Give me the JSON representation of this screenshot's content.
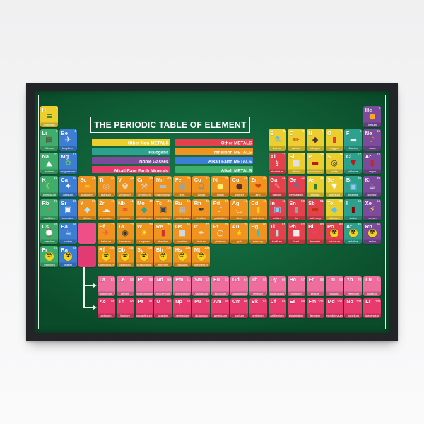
{
  "page": {
    "background_top": "#f0f0f1",
    "background_bottom": "#fafafb"
  },
  "poster": {
    "title": "THE PERIODIC TABLE OF ELEMENT",
    "frame_color": "#232428",
    "background_center": "#1a7a48",
    "background_edge": "#0a4b29",
    "pinstripe_color": "#ffffff",
    "radioactive_icon_color": "#f7d21b",
    "legend": {
      "left": [
        {
          "label": "Other Non-METALS",
          "color": "#ecce2e"
        },
        {
          "label": "Halogens",
          "color": "#2da18d"
        },
        {
          "label": "Noble Gasses",
          "color": "#7c4b9c"
        },
        {
          "label": "Alkali Rare Earth Minerals",
          "color": "#e73b6e"
        }
      ],
      "right": [
        {
          "label": "Other METALS",
          "color": "#e4414d"
        },
        {
          "label": "Transition METALS",
          "color": "#f0941f"
        },
        {
          "label": "Alkali Earth METALS",
          "color": "#3b7ed3"
        },
        {
          "label": "Alkali METALS",
          "color": "#3fae6c"
        }
      ]
    },
    "category_colors": {
      "nm": "#ecce2e",
      "hal": "#2da18d",
      "nob": "#7c4b9c",
      "alk": "#3fae6c",
      "ae": "#3b7ed3",
      "tm": "#f0941f",
      "om": "#e4414d",
      "la": "#ee6d9c",
      "acs": "#e73b6e"
    },
    "element_fields": [
      "symbol",
      "number",
      "name",
      "category",
      "column",
      "period_row",
      "icon",
      "glyph",
      "glyph_color"
    ],
    "elements": [
      [
        "H",
        1,
        "hydrogen",
        "nm",
        1,
        1,
        "burger",
        "≡",
        "#2e7d32"
      ],
      [
        "He",
        2,
        "helium",
        "nob",
        18,
        1,
        "balloon",
        "●",
        "#f9a825"
      ],
      [
        "Li",
        3,
        "lithium",
        "alk",
        1,
        2,
        "chocolate",
        "▤",
        "#5d4037"
      ],
      [
        "Be",
        4,
        "beryllium",
        "ae",
        2,
        2,
        "satellite",
        "✈",
        "#eceff1"
      ],
      [
        "B",
        5,
        "boron",
        "nm",
        13,
        2,
        "measuring-jug",
        "⚗",
        "#64b5f6"
      ],
      [
        "C",
        6,
        "carbon",
        "nm",
        14,
        2,
        "pencil",
        "✏",
        "#c62828"
      ],
      [
        "N",
        7,
        "nitrogen",
        "nm",
        15,
        2,
        "pouch",
        "◆",
        "#4e342e"
      ],
      [
        "O",
        8,
        "oxygen",
        "nm",
        16,
        2,
        "oxygen-tank",
        "▮",
        "#e53935"
      ],
      [
        "F",
        9,
        "fluorine",
        "hal",
        17,
        2,
        "toothpaste",
        "▬",
        "#eceff1"
      ],
      [
        "Ne",
        10,
        "neon",
        "nob",
        18,
        2,
        "neon-tube",
        "♪",
        "#fb8c00"
      ],
      [
        "Na",
        11,
        "sodium",
        "alk",
        1,
        3,
        "salt-cone",
        "▲",
        "#fafafa"
      ],
      [
        "Mg",
        12,
        "magnesium",
        "ae",
        2,
        3,
        "leaves",
        "✿",
        "#66bb6a"
      ],
      [
        "Al",
        13,
        "aluminium",
        "om",
        13,
        3,
        "squeeze-tube",
        "§",
        "#eceff1"
      ],
      [
        "Si",
        14,
        "silicon",
        "nm",
        14,
        3,
        "chip",
        "■",
        "#e0e0e0"
      ],
      [
        "P",
        15,
        "phosphorus",
        "nm",
        15,
        3,
        "candy-bar",
        "▬",
        "#b71c1c"
      ],
      [
        "S",
        16,
        "sulfur",
        "nm",
        16,
        3,
        "tire",
        "◎",
        "#263238"
      ],
      [
        "Cl",
        17,
        "chlorine",
        "hal",
        17,
        3,
        "necktie",
        "▼",
        "#b71c1c"
      ],
      [
        "Ar",
        18,
        "argon",
        "nob",
        18,
        3,
        "canister",
        "▮",
        "#c62828"
      ],
      [
        "K",
        19,
        "potassium",
        "alk",
        1,
        4,
        "banana",
        "☾",
        "#fdd835"
      ],
      [
        "Ca",
        20,
        "calcium",
        "ae",
        2,
        4,
        "bone",
        "✦",
        "#fafafa"
      ],
      [
        "Sc",
        21,
        "scandium",
        "tm",
        3,
        4,
        "bicycle",
        "∞",
        "#fdd835"
      ],
      [
        "Ti",
        22,
        "titanium",
        "tm",
        4,
        4,
        "tennis-racket",
        "◎",
        "#d7ccc8"
      ],
      [
        "V",
        23,
        "vanadium",
        "tm",
        5,
        4,
        "gears",
        "⚙",
        "#eceff1"
      ],
      [
        "Cr",
        24,
        "chromium",
        "tm",
        6,
        4,
        "tools",
        "⚒",
        "#cfd8dc"
      ],
      [
        "Mn",
        25,
        "manganese",
        "tm",
        7,
        4,
        "girder",
        "▬",
        "#b0bec5"
      ],
      [
        "Fe",
        26,
        "iron",
        "tm",
        8,
        4,
        "fence",
        "▦",
        "#90a4ae"
      ],
      [
        "Co",
        27,
        "cobalt",
        "tm",
        9,
        4,
        "horseshoe",
        "Ω",
        "#78909c"
      ],
      [
        "Ni",
        28,
        "nickel",
        "tm",
        10,
        4,
        "coin",
        "●",
        "#fff176"
      ],
      [
        "Cu",
        29,
        "copper",
        "tm",
        11,
        4,
        "frying-pan",
        "●",
        "#4e342e"
      ],
      [
        "Zn",
        30,
        "zinc",
        "tm",
        12,
        4,
        "meat",
        "❤",
        "#d84315"
      ],
      [
        "Ga",
        31,
        "gallium",
        "om",
        13,
        4,
        "thermometer",
        "✎",
        "#ef9a9a"
      ],
      [
        "Ge",
        32,
        "germanium",
        "om",
        14,
        4,
        "microscope",
        "⚗",
        "#1e88e5"
      ],
      [
        "As",
        33,
        "arsenic",
        "nm",
        15,
        4,
        "poison-bottle",
        "▮",
        "#2e7d32"
      ],
      [
        "Se",
        34,
        "selenium",
        "nm",
        16,
        4,
        "funnel",
        "▼",
        "#fafafa"
      ],
      [
        "Br",
        35,
        "bromine",
        "hal",
        17,
        4,
        "film",
        "▣",
        "#90caf9"
      ],
      [
        "Kr",
        36,
        "krypton",
        "nob",
        18,
        4,
        "lantern",
        "☕",
        "#efebe9"
      ],
      [
        "Rb",
        37,
        "rubidium",
        "alk",
        1,
        5,
        "firecracker",
        "⚡",
        "#ef5350"
      ],
      [
        "Sr",
        38,
        "strontium",
        "ae",
        2,
        5,
        "monitor",
        "▣",
        "#eceff1"
      ],
      [
        "Y",
        39,
        "yttrium",
        "tm",
        3,
        5,
        "crystal",
        "◆",
        "#b3e5fc"
      ],
      [
        "Zr",
        40,
        "zirconium",
        "tm",
        4,
        5,
        "cloud",
        "☁",
        "#eceff1"
      ],
      [
        "Nb",
        41,
        "niobium",
        "tm",
        5,
        5,
        "glasses",
        "∞",
        "#e53935"
      ],
      [
        "Mo",
        42,
        "molybdenum",
        "tm",
        6,
        5,
        "pick",
        "◆",
        "#26a69a"
      ],
      [
        "Tc",
        43,
        "technetium",
        "tm",
        7,
        5,
        "battery",
        "▣",
        "#37474f"
      ],
      [
        "Ru",
        44,
        "ruthenium",
        "tm",
        8,
        5,
        "circuit-board",
        "▦",
        "#b0bec5"
      ],
      [
        "Rh",
        45,
        "rhodium",
        "tm",
        9,
        5,
        "pen",
        "✒",
        "#263238"
      ],
      [
        "Pd",
        46,
        "palladium",
        "tm",
        10,
        5,
        "trumpet",
        "♪",
        "#cfd8dc"
      ],
      [
        "Ag",
        47,
        "silver",
        "tm",
        11,
        5,
        "spoon",
        "◡",
        "#eceff1"
      ],
      [
        "Cd",
        48,
        "cadmium",
        "tm",
        12,
        5,
        "battery",
        "▮",
        "#ffca28"
      ],
      [
        "In",
        49,
        "indium",
        "om",
        13,
        5,
        "laptop",
        "▣",
        "#90caf9"
      ],
      [
        "Sn",
        50,
        "tin",
        "om",
        14,
        5,
        "tin-can",
        "▮",
        "#90a4ae"
      ],
      [
        "Sb",
        51,
        "antimony",
        "om",
        15,
        5,
        "brick",
        "▬",
        "#bf360c"
      ],
      [
        "Te",
        52,
        "tellurium",
        "nm",
        16,
        5,
        "gem",
        "◆",
        "#4fc3f7"
      ],
      [
        "I",
        53,
        "iodine",
        "hal",
        17,
        5,
        "iodine-bottle",
        "▮",
        "#8e0000"
      ],
      [
        "Xe",
        54,
        "xenon",
        "nob",
        18,
        5,
        "flashlight",
        "⚡",
        "#fdd835"
      ],
      [
        "Cs",
        55,
        "caesium",
        "alk",
        1,
        6,
        "digital-clock",
        "⌚",
        "#eceff1"
      ],
      [
        "Ba",
        56,
        "barium",
        "ae",
        2,
        6,
        "teapot",
        "☕",
        "#eceff1"
      ],
      [
        "Hf",
        72,
        "hafnium",
        "tm",
        4,
        6,
        "rocket",
        "✈",
        "#ef5350"
      ],
      [
        "Ta",
        73,
        "tantalum",
        "tm",
        5,
        6,
        "camera-lens",
        "◉",
        "#263238"
      ],
      [
        "W",
        74,
        "tungsten",
        "tm",
        6,
        6,
        "light-bulb",
        "☀",
        "#ffee58"
      ],
      [
        "Re",
        75,
        "rhenium",
        "tm",
        7,
        6,
        "fuel-can",
        "▮",
        "#d32f2f"
      ],
      [
        "Os",
        76,
        "osmium",
        "tm",
        8,
        6,
        "stone",
        "■",
        "#cfd8dc"
      ],
      [
        "Ir",
        77,
        "iridium",
        "tm",
        9,
        6,
        "pen-nib",
        "✒",
        "#eceff1"
      ],
      [
        "Pt",
        78,
        "platinum",
        "tm",
        10,
        6,
        "ring",
        "○",
        "#eceff1"
      ],
      [
        "Au",
        79,
        "gold",
        "tm",
        11,
        6,
        "gold-nugget",
        "★",
        "#ffd600"
      ],
      [
        "Hg",
        80,
        "mercury",
        "tm",
        12,
        6,
        "thermometer",
        "▮",
        "#26c6da"
      ],
      [
        "Tl",
        81,
        "thallium",
        "om",
        13,
        6,
        "bottle",
        "▮",
        "#b2dfdb"
      ],
      [
        "Pb",
        82,
        "lead",
        "om",
        14,
        6,
        "box",
        "■",
        "#efebe9"
      ],
      [
        "Bi",
        83,
        "bismuth",
        "om",
        15,
        6,
        "lipstick",
        "✒",
        "#ec407a"
      ],
      [
        "Po",
        84,
        "polonium",
        "om",
        16,
        6,
        "radioactive",
        "☢",
        "rad"
      ],
      [
        "At",
        85,
        "astatine",
        "hal",
        17,
        6,
        "radioactive",
        "☢",
        "rad"
      ],
      [
        "Rn",
        86,
        "radon",
        "nob",
        18,
        6,
        "radioactive",
        "☢",
        "rad"
      ],
      [
        "Fr",
        87,
        "francium",
        "alk",
        1,
        7,
        "radioactive",
        "☢",
        "rad"
      ],
      [
        "Ra",
        88,
        "radium",
        "ae",
        2,
        7,
        "radioactive",
        "☢",
        "rad"
      ],
      [
        "Rf",
        104,
        "rutherfordium",
        "tm",
        4,
        7,
        "radioactive",
        "☢",
        "rad"
      ],
      [
        "Db",
        105,
        "dubnium",
        "tm",
        5,
        7,
        "radioactive",
        "☢",
        "rad"
      ],
      [
        "Sg",
        106,
        "seaborgium",
        "tm",
        6,
        7,
        "radioactive",
        "☢",
        "rad"
      ],
      [
        "Bh",
        107,
        "bohrium",
        "tm",
        7,
        7,
        "radioactive",
        "☢",
        "rad"
      ],
      [
        "Hs",
        108,
        "hassium",
        "tm",
        8,
        7,
        "radioactive",
        "☢",
        "rad"
      ],
      [
        "Mt",
        109,
        "meitnerium",
        "tm",
        9,
        7,
        "radioactive",
        "☢",
        "rad"
      ],
      [
        "La",
        57,
        "lanthanum",
        "la",
        4,
        8
      ],
      [
        "Ce",
        58,
        "cerium",
        "la",
        5,
        8
      ],
      [
        "Pr",
        59,
        "praseodymium",
        "la",
        6,
        8
      ],
      [
        "Nd",
        60,
        "neodymium",
        "la",
        7,
        8
      ],
      [
        "Pm",
        61,
        "promethium",
        "la",
        8,
        8
      ],
      [
        "Sm",
        62,
        "samarium",
        "la",
        9,
        8
      ],
      [
        "Eu",
        63,
        "europium",
        "la",
        10,
        8
      ],
      [
        "Gd",
        64,
        "gadolinium",
        "la",
        11,
        8
      ],
      [
        "Tb",
        65,
        "terbium",
        "la",
        12,
        8
      ],
      [
        "Dy",
        66,
        "dysprosium",
        "la",
        13,
        8
      ],
      [
        "Ho",
        67,
        "holmium",
        "la",
        14,
        8
      ],
      [
        "Er",
        68,
        "erbium",
        "la",
        15,
        8
      ],
      [
        "Tm",
        69,
        "thulium",
        "la",
        16,
        8
      ],
      [
        "Yb",
        70,
        "ytterbium",
        "la",
        17,
        8
      ],
      [
        "Lu",
        71,
        "lutetium",
        "la",
        18,
        8
      ],
      [
        "Ac",
        89,
        "actinium",
        "acs",
        4,
        9
      ],
      [
        "Th",
        90,
        "thorium",
        "acs",
        5,
        9
      ],
      [
        "Pa",
        91,
        "protactinium",
        "acs",
        6,
        9
      ],
      [
        "U",
        92,
        "uranium",
        "acs",
        7,
        9
      ],
      [
        "Np",
        93,
        "neptunium",
        "acs",
        8,
        9
      ],
      [
        "Pu",
        94,
        "plutonium",
        "acs",
        9,
        9
      ],
      [
        "Am",
        95,
        "americium",
        "acs",
        10,
        9
      ],
      [
        "Cm",
        96,
        "curium",
        "acs",
        11,
        9
      ],
      [
        "Bk",
        97,
        "berkelium",
        "acs",
        12,
        9
      ],
      [
        "Cf",
        98,
        "californium",
        "acs",
        13,
        9
      ],
      [
        "Es",
        99,
        "einsteinium",
        "acs",
        14,
        9
      ],
      [
        "Fm",
        100,
        "fermium",
        "acs",
        15,
        9
      ],
      [
        "Md",
        101,
        "mendelevium",
        "acs",
        16,
        9
      ],
      [
        "No",
        102,
        "nobelium",
        "acs",
        17,
        9
      ],
      [
        "Lr",
        103,
        "lawrencium",
        "acs",
        18,
        9
      ]
    ],
    "placeholders": [
      {
        "column": 3,
        "row": 6,
        "color": "#ee4f86"
      },
      {
        "column": 3,
        "row": 7,
        "color": "#e23a72"
      }
    ]
  }
}
